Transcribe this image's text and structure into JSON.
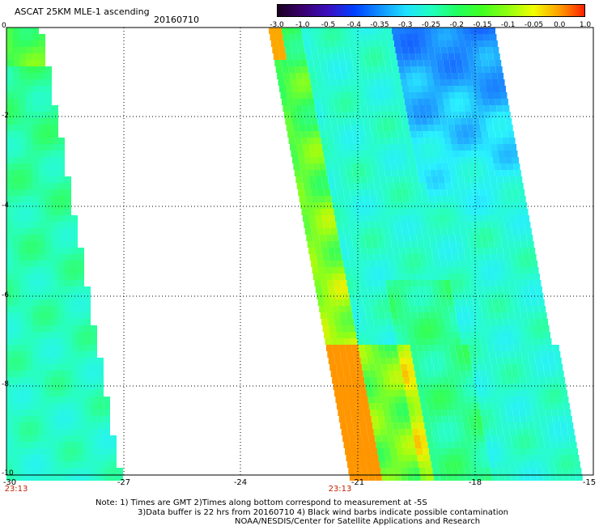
{
  "header": {
    "title": "ASCAT 25KM MLE-1 ascending",
    "date": "20160710"
  },
  "colorbar": {
    "labels": [
      "-3.0",
      "-1.0",
      "-0.5",
      "-0.4",
      "-0.35",
      "-0.3",
      "-0.25",
      "-0.2",
      "-0.15",
      "-0.1",
      "-0.05",
      "0.0",
      "1.0"
    ],
    "colors": [
      "#1a0020",
      "#3a0070",
      "#3a10c0",
      "#0040ff",
      "#1090ff",
      "#20e0ff",
      "#20ffc0",
      "#20ff60",
      "#40ff20",
      "#90ff10",
      "#f0ff00",
      "#ffa000",
      "#ff2000"
    ]
  },
  "axes": {
    "y_ticks": [
      "0",
      "-2",
      "-4",
      "-6",
      "-8",
      "-10"
    ],
    "x_ticks": [
      "-30",
      "-27",
      "-24",
      "-21",
      "-18",
      "-15"
    ]
  },
  "times": {
    "left": "23:13",
    "middle": "23:13"
  },
  "notes": {
    "line1": "Note: 1) Times are GMT 2)Times along bottom correspond to measurement at -5S",
    "line2": "3)Data buffer is 22 hrs from 20160710 4) Black wind barbs indicate possible contamination",
    "line3": "NOAA/NESDIS/Center for Satellite Applications and Research"
  }
}
